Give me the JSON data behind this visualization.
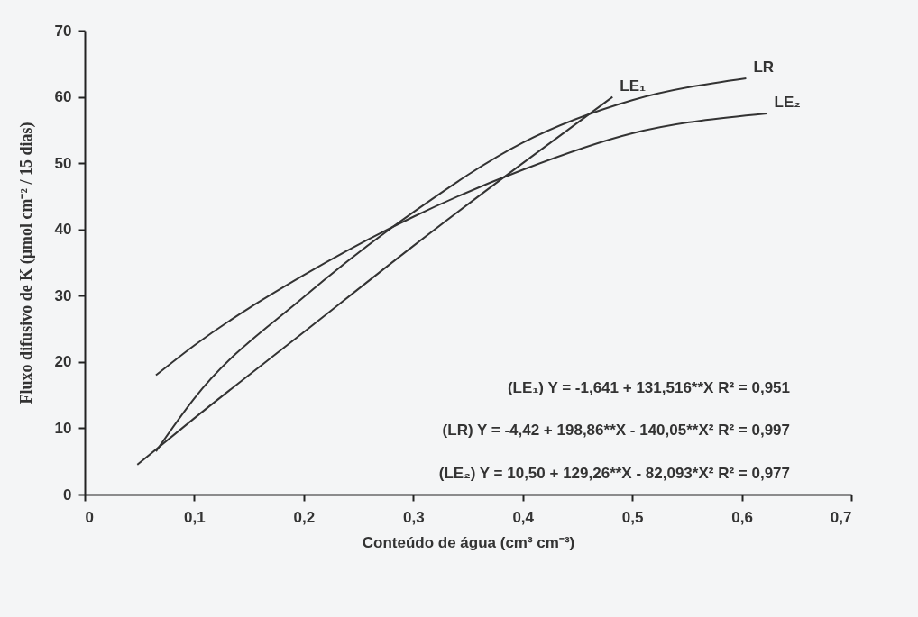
{
  "chart_data": {
    "type": "line",
    "xlabel": "Conteúdo de água (cm³ cm⁻³)",
    "ylabel": "Fluxo difusivo de K  (µmol cm⁻² / 15 dias)",
    "series": [
      {
        "name": "LE₁",
        "color": "#333333",
        "x": [
          0.048,
          0.1,
          0.2,
          0.3,
          0.4,
          0.482
        ],
        "values": [
          4.5,
          11.5,
          24.5,
          37.5,
          50,
          60
        ]
      },
      {
        "name": "LR",
        "color": "#333333",
        "x": [
          0.065,
          0.1,
          0.2,
          0.3,
          0.4,
          0.5,
          0.604
        ],
        "values": [
          6.5,
          14.5,
          29.8,
          42.6,
          53.1,
          59.5,
          62.8
        ]
      },
      {
        "name": "LE₂",
        "color": "#333333",
        "x": [
          0.065,
          0.1,
          0.2,
          0.3,
          0.4,
          0.5,
          0.623
        ],
        "values": [
          18,
          22.5,
          33.1,
          41.9,
          49,
          54.5,
          57.5
        ]
      }
    ],
    "xlim": [
      0,
      0.7
    ],
    "xticks": [
      0,
      {
        "value": 0.1,
        "label": "0,1"
      },
      {
        "value": 0.2,
        "label": "0,2"
      },
      {
        "value": 0.3,
        "label": "0,3"
      },
      {
        "value": 0.4,
        "label": "0,4"
      },
      {
        "value": 0.5,
        "label": "0,5"
      },
      {
        "value": 0.6,
        "label": "0,6"
      },
      {
        "value": 0.7,
        "label": "0,7"
      }
    ],
    "ylim": [
      0,
      70
    ],
    "yticks": [
      0,
      10,
      20,
      30,
      40,
      50,
      60,
      70
    ],
    "grid": false,
    "legend": false,
    "marker": "none",
    "line_style": "solid",
    "annotations": [
      "(LE₁)  Y = -1,641 + 131,516**X   R² = 0,951",
      "(LR) Y = -4,42 + 198,86**X - 140,05**X²   R² = 0,997",
      "(LE₂) Y = 10,50 + 129,26**X - 82,093*X²    R² = 0,977"
    ]
  }
}
